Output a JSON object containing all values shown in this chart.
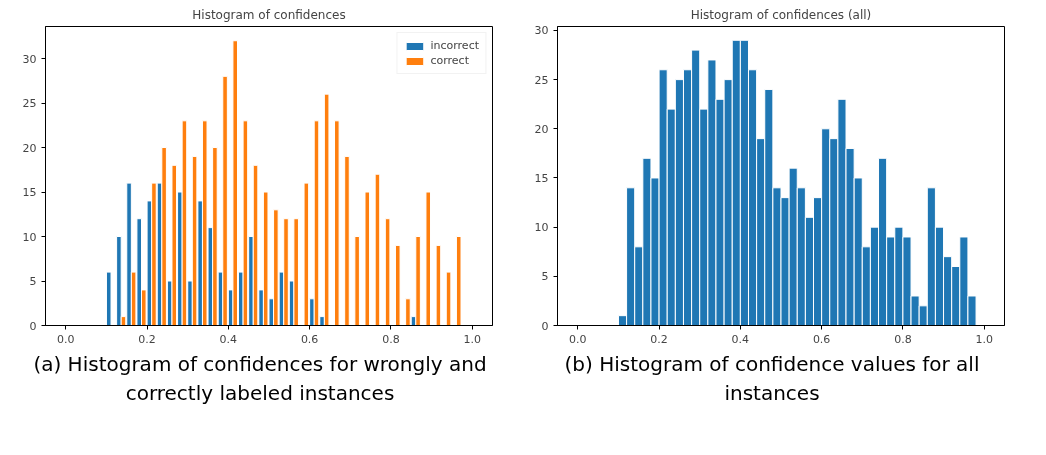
{
  "chart_data": [
    {
      "type": "histogram",
      "title": "Histogram of confidences",
      "bins": [
        0.1,
        0.125,
        0.15,
        0.175,
        0.2,
        0.225,
        0.25,
        0.275,
        0.3,
        0.325,
        0.35,
        0.375,
        0.4,
        0.425,
        0.45,
        0.475,
        0.5,
        0.525,
        0.55,
        0.575,
        0.6,
        0.625,
        0.65,
        0.675,
        0.7,
        0.725,
        0.75,
        0.775,
        0.8,
        0.825,
        0.85,
        0.875,
        0.9,
        0.925,
        0.95,
        0.975
      ],
      "series": [
        {
          "name": "incorrect",
          "color": "#1f77b4",
          "values": [
            6,
            10,
            16,
            12,
            14,
            16,
            5,
            15,
            5,
            14,
            11,
            6,
            4,
            6,
            10,
            4,
            3,
            6,
            5,
            0,
            3,
            1,
            0,
            0,
            0,
            0,
            0,
            0,
            0,
            0,
            1,
            0,
            0,
            0,
            0
          ]
        },
        {
          "name": "correct",
          "color": "#ff7f0e",
          "values": [
            0,
            1,
            6,
            4,
            16,
            20,
            18,
            23,
            19,
            23,
            20,
            28,
            32,
            23,
            18,
            15,
            13,
            12,
            12,
            16,
            23,
            26,
            23,
            19,
            10,
            15,
            17,
            12,
            9,
            3,
            10,
            15,
            9,
            6,
            10
          ]
        }
      ],
      "xlim": [
        -0.05,
        1.05
      ],
      "ylim": [
        0,
        33.6
      ],
      "xticks": [
        {
          "value": 0,
          "label": "0.0"
        },
        {
          "value": 0.2,
          "label": "0.2"
        },
        {
          "value": 0.4,
          "label": "0.4"
        },
        {
          "value": 0.6,
          "label": "0.6"
        },
        {
          "value": 0.8,
          "label": "0.8"
        },
        {
          "value": 1,
          "label": "1.0"
        }
      ],
      "yticks": [
        0,
        5,
        10,
        15,
        20,
        25,
        30
      ],
      "legend": "top right",
      "grid": false,
      "annotations": [
        "(a) Histogram of confidences for wrongly and correctly labeled instances"
      ]
    },
    {
      "type": "histogram",
      "title": "Histogram of confidences (all)",
      "bins": [
        0.1,
        0.12,
        0.14,
        0.16,
        0.18,
        0.2,
        0.22,
        0.24,
        0.26,
        0.28,
        0.3,
        0.32,
        0.34,
        0.36,
        0.38,
        0.4,
        0.42,
        0.44,
        0.46,
        0.48,
        0.5,
        0.52,
        0.54,
        0.56,
        0.58,
        0.6,
        0.62,
        0.64,
        0.66,
        0.68,
        0.7,
        0.72,
        0.74,
        0.76,
        0.78,
        0.8,
        0.82,
        0.84,
        0.86,
        0.88,
        0.9,
        0.92,
        0.94,
        0.96,
        0.98
      ],
      "values": [
        1,
        14,
        8,
        17,
        15,
        26,
        22,
        25,
        26,
        28,
        22,
        27,
        23,
        25,
        29,
        29,
        26,
        19,
        24,
        14,
        13,
        16,
        14,
        11,
        13,
        20,
        19,
        23,
        18,
        15,
        8,
        10,
        17,
        9,
        10,
        9,
        3,
        2,
        14,
        10,
        7,
        6,
        9,
        3
      ],
      "color": "#1f77b4",
      "xlim": [
        -0.05,
        1.05
      ],
      "ylim": [
        0,
        30.4
      ],
      "xticks": [
        {
          "value": 0,
          "label": "0.0"
        },
        {
          "value": 0.2,
          "label": "0.2"
        },
        {
          "value": 0.4,
          "label": "0.4"
        },
        {
          "value": 0.6,
          "label": "0.6"
        },
        {
          "value": 0.8,
          "label": "0.8"
        },
        {
          "value": 1,
          "label": "1.0"
        }
      ],
      "yticks": [
        0,
        5,
        10,
        15,
        20,
        25,
        30
      ],
      "grid": false,
      "annotations": [
        "(b) Histogram of confidence values for all instances"
      ]
    }
  ]
}
